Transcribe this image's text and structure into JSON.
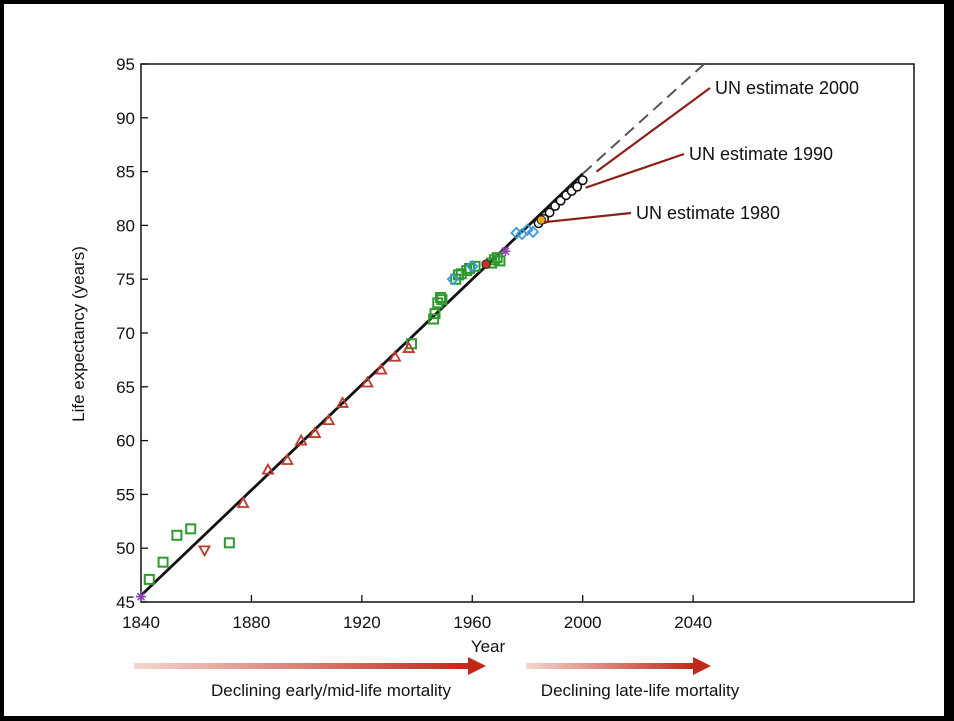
{
  "chart_data": {
    "type": "scatter",
    "title": "",
    "xlabel": "Year",
    "ylabel": "Life expectancy (years)",
    "xlim": [
      1840,
      2120
    ],
    "ylim": [
      45,
      95
    ],
    "xticks": [
      1840,
      1880,
      1920,
      1960,
      2000,
      2040
    ],
    "yticks": [
      45,
      50,
      55,
      60,
      65,
      70,
      75,
      80,
      85,
      90,
      95
    ],
    "grid": false,
    "trend_line": {
      "solid": {
        "x": [
          1840,
          2000
        ],
        "y": [
          45.6,
          84.8
        ]
      },
      "dashed": {
        "x": [
          2000,
          2044
        ],
        "y": [
          84.8,
          95
        ]
      }
    },
    "series": [
      {
        "marker": "square",
        "color": "#2e9a2e",
        "points": [
          [
            1843,
            47.1
          ],
          [
            1848,
            48.7
          ],
          [
            1853,
            51.2
          ],
          [
            1858,
            51.8
          ],
          [
            1872,
            50.5
          ],
          [
            1946,
            71.3
          ],
          [
            1946.5,
            71.8
          ],
          [
            1947.5,
            72.8
          ],
          [
            1948.5,
            73.3
          ],
          [
            1949,
            73.1
          ],
          [
            1954,
            75.0
          ],
          [
            1955,
            75.4
          ],
          [
            1956,
            75.5
          ],
          [
            1958,
            75.8
          ],
          [
            1959,
            76.0
          ],
          [
            1961,
            76.2
          ],
          [
            1967,
            76.5
          ],
          [
            1968,
            76.8
          ],
          [
            1969,
            77.0
          ],
          [
            1970,
            76.7
          ],
          [
            1938,
            69.0
          ]
        ]
      },
      {
        "marker": "triangle-up",
        "color": "#c0392b",
        "points": [
          [
            1877,
            54.2
          ],
          [
            1886,
            57.3
          ],
          [
            1893,
            58.2
          ],
          [
            1898,
            60.0
          ],
          [
            1903,
            60.7
          ],
          [
            1908,
            61.9
          ],
          [
            1913,
            63.5
          ],
          [
            1922,
            65.4
          ],
          [
            1927,
            66.6
          ],
          [
            1932,
            67.8
          ],
          [
            1937,
            68.6
          ]
        ]
      },
      {
        "marker": "triangle-down",
        "color": "#c0392b",
        "points": [
          [
            1863,
            49.8
          ]
        ]
      },
      {
        "marker": "diamond",
        "color": "#3a9ad9",
        "points": [
          [
            1953,
            75.0
          ],
          [
            1960,
            76.2
          ],
          [
            1976,
            79.3
          ],
          [
            1978,
            79.2
          ],
          [
            1980,
            79.6
          ],
          [
            1982,
            79.4
          ]
        ]
      },
      {
        "marker": "star",
        "color": "#8e44ad",
        "points": [
          [
            1840,
            45.5
          ],
          [
            1972,
            77.6
          ]
        ]
      },
      {
        "marker": "circle",
        "color": "#111111",
        "points": [
          [
            1984,
            80.2
          ],
          [
            1986,
            80.6
          ],
          [
            1988,
            81.2
          ],
          [
            1990,
            81.8
          ],
          [
            1992,
            82.3
          ],
          [
            1994,
            82.8
          ],
          [
            1996,
            83.2
          ],
          [
            1998,
            83.6
          ],
          [
            2000,
            84.2
          ]
        ]
      },
      {
        "marker": "circle-filled",
        "color": "#c0392b",
        "points": [
          [
            1965,
            76.4
          ]
        ]
      },
      {
        "marker": "circle-filled",
        "color": "#e6a817",
        "points": [
          [
            1985,
            80.5
          ]
        ]
      }
    ],
    "annotations": [
      {
        "text": "UN estimate 2000",
        "x": 2005,
        "y": 85.0
      },
      {
        "text": "UN estimate 1990",
        "x": 2001,
        "y": 83.5
      },
      {
        "text": "UN estimate 1980",
        "x": 1986,
        "y": 80.3
      }
    ],
    "bottom_arrows": [
      {
        "text": "Declining early/mid-life mortality"
      },
      {
        "text": "Declining late-life mortality"
      }
    ]
  }
}
